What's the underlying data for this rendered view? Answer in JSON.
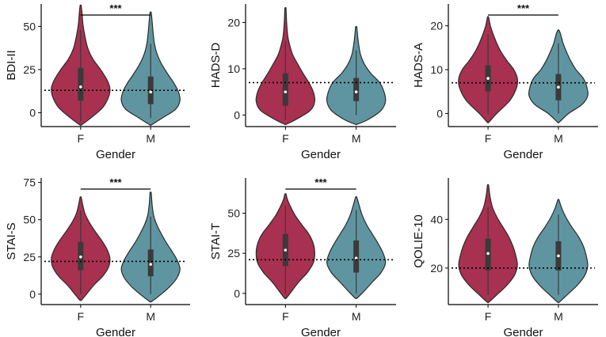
{
  "colors": {
    "F": "#A83050",
    "M": "#5E95A1",
    "box": "#3a3a3a",
    "median": "#ffffff"
  },
  "chart_data": [
    {
      "type": "violin",
      "title": "",
      "xlabel": "Gender",
      "ylabel": "BDI-II",
      "categories": [
        "F",
        "M"
      ],
      "ylim": [
        -8,
        63
      ],
      "yticks": [
        0,
        25,
        50
      ],
      "reference_line": 13,
      "groups": [
        {
          "name": "F",
          "min": -7,
          "max": 62,
          "q1": 7,
          "median": 15,
          "q3": 26,
          "whisker_low": -5,
          "whisker_high": 48,
          "profile": [
            [
              -7,
              0.03
            ],
            [
              -3,
              0.35
            ],
            [
              3,
              0.75
            ],
            [
              9,
              0.95
            ],
            [
              14,
              1.0
            ],
            [
              19,
              0.9
            ],
            [
              25,
              0.68
            ],
            [
              31,
              0.42
            ],
            [
              37,
              0.25
            ],
            [
              44,
              0.15
            ],
            [
              51,
              0.08
            ],
            [
              57,
              0.05
            ],
            [
              62,
              0.02
            ]
          ]
        },
        {
          "name": "M",
          "min": -7,
          "max": 58,
          "q1": 5,
          "median": 12,
          "q3": 21,
          "whisker_low": -3,
          "whisker_high": 40,
          "profile": [
            [
              -7,
              0.03
            ],
            [
              -3,
              0.4
            ],
            [
              2,
              0.85
            ],
            [
              7,
              1.0
            ],
            [
              12,
              0.95
            ],
            [
              17,
              0.8
            ],
            [
              22,
              0.6
            ],
            [
              28,
              0.38
            ],
            [
              34,
              0.22
            ],
            [
              40,
              0.13
            ],
            [
              47,
              0.08
            ],
            [
              53,
              0.05
            ],
            [
              58,
              0.02
            ]
          ]
        }
      ],
      "significance": {
        "label": "***",
        "between": [
          "F",
          "M"
        ]
      }
    },
    {
      "type": "violin",
      "title": "",
      "xlabel": "Gender",
      "ylabel": "HADS-D",
      "categories": [
        "F",
        "M"
      ],
      "ylim": [
        -2.5,
        24
      ],
      "yticks": [
        0,
        10,
        20
      ],
      "reference_line": 7,
      "groups": [
        {
          "name": "F",
          "min": -2,
          "max": 23,
          "q1": 2,
          "median": 5,
          "q3": 9,
          "whisker_low": -1,
          "whisker_high": 16,
          "profile": [
            [
              -2,
              0.03
            ],
            [
              -1,
              0.35
            ],
            [
              1,
              0.85
            ],
            [
              3,
              1.0
            ],
            [
              5,
              0.95
            ],
            [
              7,
              0.8
            ],
            [
              9,
              0.6
            ],
            [
              11,
              0.42
            ],
            [
              13,
              0.25
            ],
            [
              15,
              0.15
            ],
            [
              17,
              0.08
            ],
            [
              20,
              0.04
            ],
            [
              23,
              0.02
            ]
          ]
        },
        {
          "name": "M",
          "min": -2,
          "max": 19,
          "q1": 3,
          "median": 5,
          "q3": 8,
          "whisker_low": 0,
          "whisker_high": 14,
          "profile": [
            [
              -2,
              0.03
            ],
            [
              -1,
              0.4
            ],
            [
              1,
              0.85
            ],
            [
              3,
              1.0
            ],
            [
              5,
              0.95
            ],
            [
              7,
              0.8
            ],
            [
              9,
              0.5
            ],
            [
              11,
              0.28
            ],
            [
              13,
              0.15
            ],
            [
              15,
              0.09
            ],
            [
              17,
              0.05
            ],
            [
              19,
              0.02
            ]
          ]
        }
      ]
    },
    {
      "type": "violin",
      "title": "",
      "xlabel": "Gender",
      "ylabel": "HADS-A",
      "categories": [
        "F",
        "M"
      ],
      "ylim": [
        -3,
        25
      ],
      "yticks": [
        0,
        10,
        20
      ],
      "reference_line": 7,
      "groups": [
        {
          "name": "F",
          "min": -2,
          "max": 22,
          "q1": 5,
          "median": 8,
          "q3": 11,
          "whisker_low": 0,
          "whisker_high": 18,
          "profile": [
            [
              -2,
              0.03
            ],
            [
              0,
              0.3
            ],
            [
              3,
              0.75
            ],
            [
              6,
              0.98
            ],
            [
              8,
              1.0
            ],
            [
              10,
              0.88
            ],
            [
              12,
              0.65
            ],
            [
              14,
              0.45
            ],
            [
              16,
              0.3
            ],
            [
              18,
              0.18
            ],
            [
              20,
              0.08
            ],
            [
              22,
              0.02
            ]
          ]
        },
        {
          "name": "M",
          "min": -2,
          "max": 19,
          "q1": 3,
          "median": 6,
          "q3": 9,
          "whisker_low": 0,
          "whisker_high": 16,
          "profile": [
            [
              -2,
              0.03
            ],
            [
              0,
              0.35
            ],
            [
              2,
              0.8
            ],
            [
              4,
              1.0
            ],
            [
              6,
              0.97
            ],
            [
              8,
              0.85
            ],
            [
              10,
              0.6
            ],
            [
              12,
              0.42
            ],
            [
              14,
              0.28
            ],
            [
              16,
              0.16
            ],
            [
              18,
              0.08
            ],
            [
              19,
              0.02
            ]
          ]
        }
      ],
      "significance": {
        "label": "***",
        "between": [
          "F",
          "M"
        ]
      }
    },
    {
      "type": "violin",
      "title": "",
      "xlabel": "Gender",
      "ylabel": "STAI-S",
      "categories": [
        "F",
        "M"
      ],
      "ylim": [
        -7,
        78
      ],
      "yticks": [
        0,
        25,
        50,
        75
      ],
      "reference_line": 22,
      "groups": [
        {
          "name": "F",
          "min": -4,
          "max": 65,
          "q1": 16,
          "median": 25,
          "q3": 35,
          "whisker_low": 0,
          "whisker_high": 56,
          "profile": [
            [
              -4,
              0.03
            ],
            [
              0,
              0.2
            ],
            [
              6,
              0.45
            ],
            [
              12,
              0.75
            ],
            [
              18,
              0.95
            ],
            [
              24,
              1.0
            ],
            [
              30,
              0.9
            ],
            [
              36,
              0.72
            ],
            [
              42,
              0.5
            ],
            [
              48,
              0.3
            ],
            [
              54,
              0.15
            ],
            [
              60,
              0.07
            ],
            [
              65,
              0.02
            ]
          ]
        },
        {
          "name": "M",
          "min": -5,
          "max": 68,
          "q1": 12,
          "median": 20,
          "q3": 30,
          "whisker_low": 0,
          "whisker_high": 52,
          "profile": [
            [
              -5,
              0.03
            ],
            [
              -1,
              0.3
            ],
            [
              5,
              0.65
            ],
            [
              11,
              0.9
            ],
            [
              17,
              1.0
            ],
            [
              23,
              0.9
            ],
            [
              29,
              0.72
            ],
            [
              35,
              0.52
            ],
            [
              41,
              0.35
            ],
            [
              47,
              0.2
            ],
            [
              53,
              0.1
            ],
            [
              60,
              0.05
            ],
            [
              68,
              0.02
            ]
          ]
        }
      ],
      "significance": {
        "label": "***",
        "between": [
          "F",
          "M"
        ]
      }
    },
    {
      "type": "violin",
      "title": "",
      "xlabel": "Gender",
      "ylabel": "STAI-T",
      "categories": [
        "F",
        "M"
      ],
      "ylim": [
        -7,
        72
      ],
      "yticks": [
        0,
        25,
        50
      ],
      "reference_line": 21,
      "groups": [
        {
          "name": "F",
          "min": -3,
          "max": 62,
          "q1": 17,
          "median": 27,
          "q3": 37,
          "whisker_low": 0,
          "whisker_high": 55,
          "profile": [
            [
              -3,
              0.03
            ],
            [
              1,
              0.2
            ],
            [
              7,
              0.45
            ],
            [
              13,
              0.75
            ],
            [
              19,
              0.95
            ],
            [
              25,
              1.0
            ],
            [
              31,
              0.95
            ],
            [
              37,
              0.8
            ],
            [
              43,
              0.55
            ],
            [
              49,
              0.32
            ],
            [
              55,
              0.15
            ],
            [
              59,
              0.06
            ],
            [
              62,
              0.02
            ]
          ]
        },
        {
          "name": "M",
          "min": -3,
          "max": 60,
          "q1": 13,
          "median": 22,
          "q3": 33,
          "whisker_low": 0,
          "whisker_high": 52,
          "profile": [
            [
              -3,
              0.03
            ],
            [
              1,
              0.25
            ],
            [
              7,
              0.55
            ],
            [
              13,
              0.85
            ],
            [
              19,
              1.0
            ],
            [
              25,
              0.92
            ],
            [
              31,
              0.75
            ],
            [
              37,
              0.55
            ],
            [
              43,
              0.35
            ],
            [
              49,
              0.2
            ],
            [
              55,
              0.1
            ],
            [
              60,
              0.02
            ]
          ]
        }
      ],
      "significance": {
        "label": "***",
        "between": [
          "F",
          "M"
        ]
      }
    },
    {
      "type": "violin",
      "title": "",
      "xlabel": "Gender",
      "ylabel": "QOLIE-10",
      "categories": [
        "F",
        "M"
      ],
      "ylim": [
        5,
        57
      ],
      "yticks": [
        20,
        40
      ],
      "reference_line": 20,
      "groups": [
        {
          "name": "F",
          "min": 6,
          "max": 54,
          "q1": 19,
          "median": 26,
          "q3": 32,
          "whisker_low": 9,
          "whisker_high": 45,
          "profile": [
            [
              6,
              0.03
            ],
            [
              9,
              0.3
            ],
            [
              13,
              0.65
            ],
            [
              17,
              0.9
            ],
            [
              21,
              1.0
            ],
            [
              25,
              0.95
            ],
            [
              29,
              0.85
            ],
            [
              33,
              0.7
            ],
            [
              37,
              0.5
            ],
            [
              41,
              0.3
            ],
            [
              45,
              0.15
            ],
            [
              50,
              0.06
            ],
            [
              54,
              0.02
            ]
          ]
        },
        {
          "name": "M",
          "min": 6,
          "max": 48,
          "q1": 19,
          "median": 25,
          "q3": 31,
          "whisker_low": 9,
          "whisker_high": 42,
          "profile": [
            [
              6,
              0.03
            ],
            [
              9,
              0.3
            ],
            [
              13,
              0.65
            ],
            [
              17,
              0.9
            ],
            [
              21,
              1.0
            ],
            [
              25,
              0.95
            ],
            [
              29,
              0.85
            ],
            [
              33,
              0.68
            ],
            [
              37,
              0.45
            ],
            [
              41,
              0.25
            ],
            [
              45,
              0.1
            ],
            [
              48,
              0.02
            ]
          ]
        }
      ]
    }
  ]
}
